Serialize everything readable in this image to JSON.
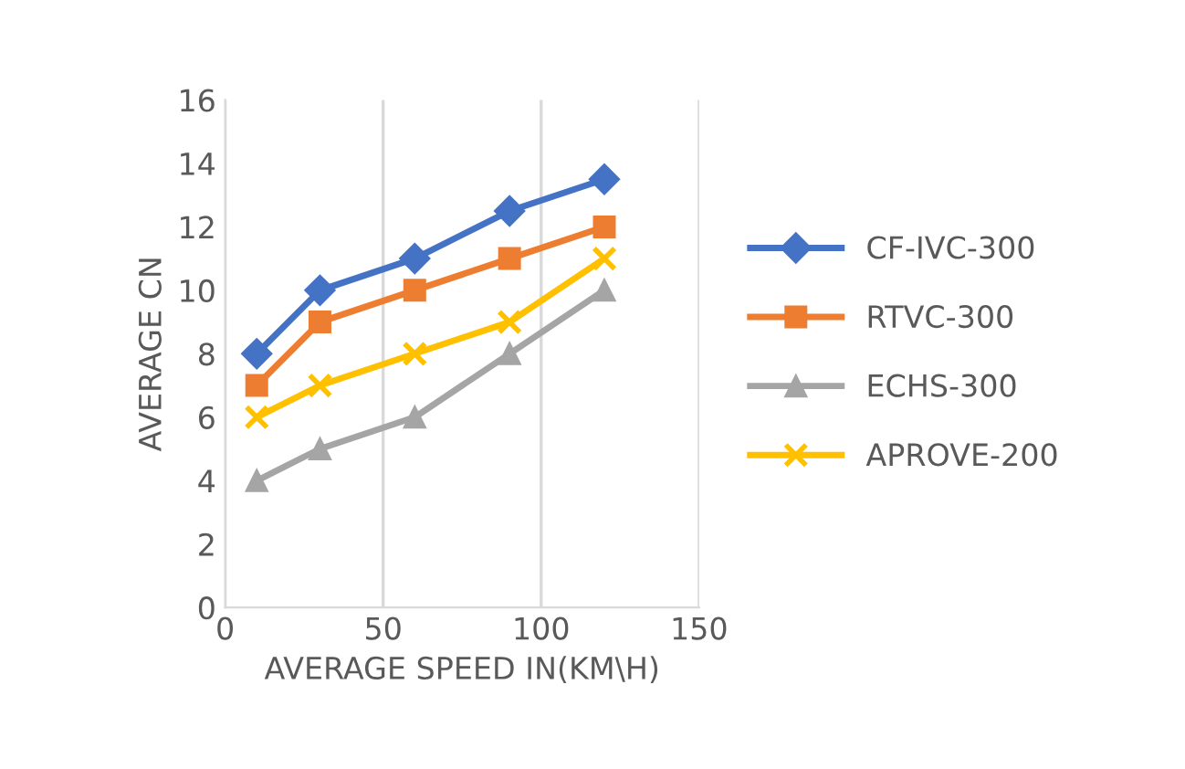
{
  "chart_data": {
    "type": "line",
    "xlabel": "AVERAGE SPEED IN(KM\\H)",
    "ylabel": "AVERAGE CN",
    "x": [
      10,
      30,
      60,
      90,
      120
    ],
    "series": [
      {
        "name": "CF-IVC-300",
        "color": "#4472c4",
        "marker": "diamond",
        "values": [
          8,
          10,
          11,
          12.5,
          13.5
        ]
      },
      {
        "name": "RTVC-300",
        "color": "#ed7d31",
        "marker": "square",
        "values": [
          7,
          9,
          10,
          11,
          12
        ]
      },
      {
        "name": "ECHS-300",
        "color": "#a5a5a5",
        "marker": "triangle",
        "values": [
          4,
          5,
          6,
          8,
          10
        ]
      },
      {
        "name": "APROVE-200",
        "color": "#ffc000",
        "marker": "cross",
        "values": [
          6,
          7,
          8,
          9,
          11
        ]
      }
    ],
    "xlim": [
      0,
      150
    ],
    "xticks": [
      0,
      50,
      100,
      150
    ],
    "ylim": [
      0,
      16
    ],
    "yticks": [
      0,
      2,
      4,
      6,
      8,
      10,
      12,
      14,
      16
    ],
    "grid": "x",
    "legend": "right",
    "line_style": "solid"
  }
}
